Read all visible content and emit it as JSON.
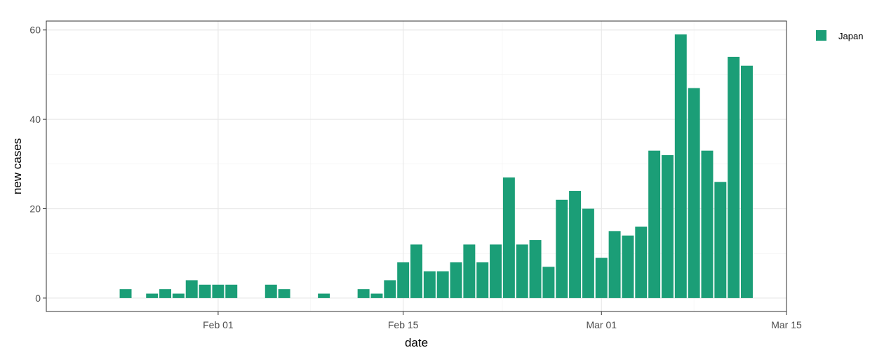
{
  "chart_data": {
    "type": "bar",
    "title": "",
    "xlabel": "date",
    "ylabel": "new cases",
    "x_axis_type": "date",
    "xlim": [
      "2020-01-19",
      "2020-03-15"
    ],
    "ylim": [
      -3,
      62
    ],
    "y_ticks": [
      0,
      20,
      40,
      60
    ],
    "x_ticks": [
      {
        "date": "2020-02-01",
        "label": "Feb 01"
      },
      {
        "date": "2020-02-15",
        "label": "Feb 15"
      },
      {
        "date": "2020-03-01",
        "label": "Mar 01"
      },
      {
        "date": "2020-03-15",
        "label": "Mar 15"
      }
    ],
    "grid": true,
    "legend_position": "right",
    "series": [
      {
        "name": "Japan",
        "color": "#1b9e77",
        "x": [
          "2020-01-25",
          "2020-01-27",
          "2020-01-28",
          "2020-01-29",
          "2020-01-30",
          "2020-01-31",
          "2020-02-01",
          "2020-02-02",
          "2020-02-05",
          "2020-02-06",
          "2020-02-09",
          "2020-02-12",
          "2020-02-13",
          "2020-02-14",
          "2020-02-15",
          "2020-02-16",
          "2020-02-17",
          "2020-02-18",
          "2020-02-19",
          "2020-02-20",
          "2020-02-21",
          "2020-02-22",
          "2020-02-23",
          "2020-02-24",
          "2020-02-25",
          "2020-02-26",
          "2020-02-27",
          "2020-02-28",
          "2020-02-29",
          "2020-03-01",
          "2020-03-02",
          "2020-03-03",
          "2020-03-04",
          "2020-03-05",
          "2020-03-06",
          "2020-03-07",
          "2020-03-08",
          "2020-03-09",
          "2020-03-10",
          "2020-03-11",
          "2020-03-12"
        ],
        "values": [
          2,
          1,
          2,
          1,
          4,
          3,
          3,
          3,
          3,
          2,
          1,
          2,
          1,
          4,
          8,
          12,
          6,
          6,
          8,
          12,
          8,
          12,
          27,
          12,
          13,
          7,
          22,
          24,
          20,
          9,
          15,
          14,
          16,
          33,
          32,
          59,
          47,
          33,
          26,
          54,
          52
        ]
      }
    ]
  }
}
